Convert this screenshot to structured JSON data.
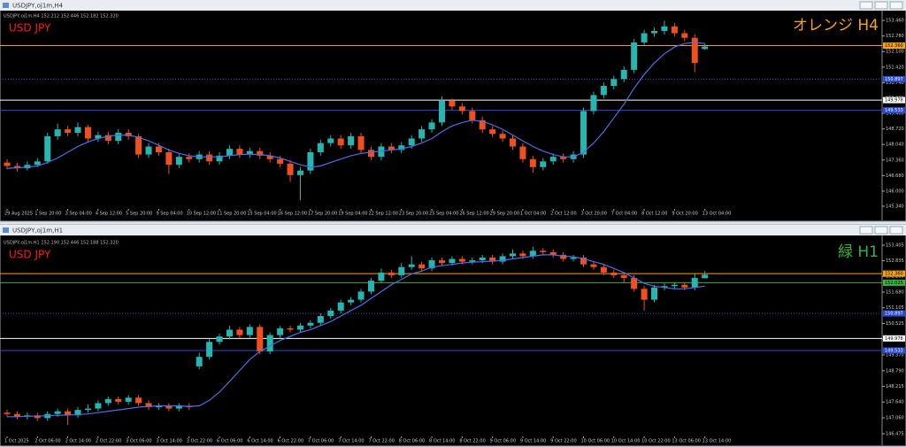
{
  "chart_data": [
    {
      "type": "candlestick",
      "window_title": "USDJPY,oj1m,H4",
      "info": "USDJPY,oj1m,H4  152.212 152.446 152.182 152.320",
      "subtitle": "USD JPY",
      "subtitle_color": "#ff1a1a",
      "title": "オレンジ H4",
      "title_color": "#f7a21b",
      "bull_color": "#26b5b0",
      "bear_color": "#f0501e",
      "ma_color": "#4d6fe6",
      "categories": [
        "29 Aug 2025",
        null,
        null,
        "1 Sep 20:00",
        null,
        null,
        "3 Sep 04:00",
        null,
        null,
        "4 Sep 12:00",
        null,
        null,
        "5 Sep 20:00",
        null,
        null,
        "9 Sep 04:00",
        null,
        null,
        "10 Sep 12:00",
        null,
        null,
        "11 Sep 20:00",
        null,
        null,
        "15 Sep 04:00",
        null,
        null,
        "16 Sep 12:00",
        null,
        null,
        "17 Sep 20:00",
        null,
        null,
        "19 Sep 04:00",
        null,
        null,
        "22 Sep 12:00",
        null,
        null,
        "23 Sep 20:00",
        null,
        null,
        "25 Sep 04:00",
        null,
        null,
        "26 Sep 12:00",
        null,
        null,
        "29 Sep 20:00",
        null,
        null,
        "1 Oct 04:00",
        null,
        null,
        "2 Oct 12:00",
        null,
        null,
        "3 Oct 20:00",
        null,
        null,
        "7 Oct 04:00",
        null,
        null,
        "8 Oct 12:00",
        null,
        null,
        "9 Oct 20:00",
        null,
        null,
        "13 Oct 04:00"
      ],
      "open": [
        147.25,
        147.1,
        147.0,
        147.15,
        147.3,
        148.4,
        148.7,
        148.55,
        148.8,
        148.3,
        148.45,
        148.2,
        148.55,
        148.4,
        147.6,
        147.95,
        147.7,
        147.15,
        147.5,
        147.4,
        147.6,
        147.3,
        147.55,
        147.85,
        147.6,
        147.75,
        147.55,
        147.4,
        147.2,
        146.7,
        146.9,
        147.7,
        148.1,
        148.3,
        148.0,
        148.4,
        147.8,
        147.5,
        147.95,
        147.8,
        148.0,
        148.3,
        148.7,
        149.0,
        149.95,
        149.7,
        149.5,
        149.1,
        148.7,
        148.5,
        148.3,
        147.95,
        147.4,
        147.05,
        147.3,
        147.5,
        147.4,
        147.6,
        149.5,
        150.2,
        150.6,
        150.9,
        151.3,
        152.5,
        152.9,
        153.0,
        153.2,
        152.9,
        152.7,
        152.21
      ],
      "high": [
        147.4,
        147.25,
        147.3,
        147.45,
        148.55,
        148.95,
        148.85,
        149.0,
        148.9,
        148.6,
        148.6,
        148.7,
        148.7,
        148.5,
        148.1,
        148.1,
        147.85,
        147.65,
        147.65,
        147.75,
        147.75,
        147.7,
        148.0,
        148.0,
        147.9,
        147.9,
        147.7,
        147.55,
        147.35,
        147.05,
        147.85,
        148.25,
        148.45,
        148.45,
        148.55,
        148.55,
        147.95,
        148.1,
        148.1,
        148.15,
        148.45,
        148.85,
        149.15,
        150.15,
        150.05,
        149.85,
        149.65,
        149.25,
        148.85,
        148.65,
        148.45,
        148.1,
        147.55,
        147.45,
        147.65,
        147.65,
        147.75,
        149.65,
        150.35,
        150.75,
        151.05,
        151.45,
        152.65,
        153.05,
        153.15,
        153.45,
        153.35,
        153.05,
        152.85,
        152.45
      ],
      "low": [
        146.95,
        146.85,
        146.9,
        147.05,
        147.2,
        148.25,
        148.4,
        148.4,
        148.15,
        148.15,
        148.05,
        148.05,
        148.25,
        147.45,
        147.45,
        147.55,
        146.75,
        147.0,
        147.25,
        147.25,
        147.15,
        147.15,
        147.4,
        147.45,
        147.45,
        147.4,
        147.25,
        147.05,
        146.4,
        145.6,
        146.75,
        147.55,
        147.95,
        147.85,
        147.85,
        147.65,
        147.35,
        147.35,
        147.65,
        147.65,
        147.85,
        148.15,
        148.55,
        148.85,
        149.55,
        149.35,
        148.95,
        148.55,
        148.35,
        148.15,
        147.8,
        147.25,
        146.8,
        146.9,
        147.15,
        147.25,
        147.25,
        147.45,
        149.35,
        150.05,
        150.45,
        150.75,
        151.15,
        152.35,
        152.75,
        152.85,
        152.75,
        152.55,
        151.2,
        152.18
      ],
      "close": [
        147.1,
        147.0,
        147.15,
        147.3,
        148.4,
        148.7,
        148.55,
        148.8,
        148.3,
        148.45,
        148.2,
        148.55,
        148.4,
        147.6,
        147.95,
        147.7,
        147.15,
        147.5,
        147.4,
        147.6,
        147.3,
        147.55,
        147.85,
        147.6,
        147.75,
        147.55,
        147.4,
        147.2,
        146.7,
        146.9,
        147.7,
        148.1,
        148.3,
        148.0,
        148.4,
        147.8,
        147.5,
        147.95,
        147.8,
        148.0,
        148.3,
        148.7,
        149.0,
        149.95,
        149.7,
        149.5,
        149.1,
        148.7,
        148.5,
        148.3,
        147.95,
        147.4,
        147.05,
        147.3,
        147.5,
        147.4,
        147.6,
        149.5,
        150.2,
        150.6,
        150.9,
        151.3,
        152.5,
        152.9,
        153.0,
        153.2,
        152.9,
        152.7,
        151.6,
        152.32
      ],
      "ma": [
        147.0,
        147.02,
        147.05,
        147.1,
        147.25,
        147.45,
        147.7,
        147.95,
        148.15,
        148.3,
        148.4,
        148.45,
        148.45,
        148.35,
        148.2,
        148.0,
        147.8,
        147.65,
        147.55,
        147.5,
        147.5,
        147.5,
        147.55,
        147.6,
        147.62,
        147.6,
        147.55,
        147.45,
        147.3,
        147.15,
        147.05,
        147.1,
        147.25,
        147.4,
        147.55,
        147.65,
        147.7,
        147.75,
        147.8,
        147.85,
        147.95,
        148.1,
        148.3,
        148.6,
        148.85,
        149.0,
        149.1,
        149.05,
        148.9,
        148.7,
        148.45,
        148.2,
        147.95,
        147.75,
        147.6,
        147.5,
        147.5,
        147.7,
        148.1,
        148.6,
        149.2,
        149.8,
        150.5,
        151.1,
        151.6,
        152.0,
        152.3,
        152.45,
        152.5,
        152.45
      ],
      "ylim": [
        145.34,
        153.85
      ],
      "yticks": [
        {
          "value": 153.46,
          "label": "153.460"
        },
        {
          "value": 152.78,
          "label": "152.780"
        },
        {
          "value": 152.1,
          "label": "152.100"
        },
        {
          "value": 151.42,
          "label": "151.420"
        },
        {
          "value": 150.74,
          "label": "150.740"
        },
        {
          "value": 150.06,
          "label": "150.060"
        },
        {
          "value": 149.4,
          "label": "149.400"
        },
        {
          "value": 148.72,
          "label": "148.720"
        },
        {
          "value": 148.04,
          "label": "148.040"
        },
        {
          "value": 147.36,
          "label": "147.360"
        },
        {
          "value": 146.68,
          "label": "146.680"
        },
        {
          "value": 146,
          "label": "146.000"
        },
        {
          "value": 145.34,
          "label": "145.340"
        }
      ],
      "levels": [
        {
          "value": 152.36,
          "label": "152.360",
          "color": "#f7a21b",
          "text_color": "#000000",
          "style": "solid"
        },
        {
          "value": 150.897,
          "label": "150.897",
          "color": "#2a4bd7",
          "text_color": "#ffffff",
          "style": "dotted"
        },
        {
          "value": 149.978,
          "label": "149.978",
          "color": "#ffffff",
          "text_color": "#000000",
          "style": "solid"
        },
        {
          "value": 149.533,
          "label": "149.533",
          "color": "#2a4bd7",
          "text_color": "#ffffff",
          "style": "solid"
        }
      ]
    },
    {
      "type": "candlestick",
      "window_title": "USDJPY,oj1m,H1",
      "info": "USDJPY,oj1m,H1  152.190 152.446 152.188 152.320",
      "subtitle": "USD JPY",
      "subtitle_color": "#ff1a1a",
      "title": "緑 H1",
      "title_color": "#3cb043",
      "bull_color": "#26b5b0",
      "bear_color": "#f0501e",
      "ma_color": "#4d6fe6",
      "categories": [
        "1 Oct 2025",
        null,
        null,
        "2 Oct 06:00",
        null,
        null,
        "2 Oct 14:00",
        null,
        null,
        "2 Oct 22:00",
        null,
        null,
        "3 Oct 06:00",
        null,
        null,
        "3 Oct 14:00",
        null,
        null,
        "3 Oct 22:00",
        null,
        null,
        "6 Oct 06:00",
        null,
        null,
        "6 Oct 14:00",
        null,
        null,
        "6 Oct 22:00",
        null,
        null,
        "7 Oct 06:00",
        null,
        null,
        "7 Oct 14:00",
        null,
        null,
        "7 Oct 22:00",
        null,
        null,
        "8 Oct 06:00",
        null,
        null,
        "8 Oct 14:00",
        null,
        null,
        "8 Oct 22:00",
        null,
        null,
        "9 Oct 06:00",
        null,
        null,
        "9 Oct 14:00",
        null,
        null,
        "9 Oct 22:00",
        null,
        null,
        "10 Oct 06:00",
        null,
        null,
        "10 Oct 14:00",
        null,
        null,
        "10 Oct 22:00",
        null,
        null,
        "13 Oct 06:00",
        null,
        null,
        "13 Oct 14:00"
      ],
      "open": [
        147.25,
        147.2,
        147.1,
        147.15,
        147.05,
        147.2,
        147.3,
        147.15,
        147.35,
        147.4,
        147.6,
        147.75,
        147.65,
        147.8,
        147.6,
        147.45,
        147.5,
        147.4,
        147.5,
        148.95,
        149.3,
        149.85,
        150.05,
        150.3,
        150.1,
        150.4,
        149.5,
        150.1,
        150.35,
        150.3,
        150.45,
        150.55,
        150.8,
        151.0,
        151.3,
        151.4,
        151.7,
        152.1,
        152.4,
        152.3,
        152.6,
        152.7,
        152.55,
        152.85,
        152.75,
        152.9,
        152.8,
        152.85,
        152.95,
        152.8,
        153.0,
        153.1,
        153.0,
        153.2,
        153.15,
        153.05,
        152.9,
        152.95,
        152.7,
        152.6,
        152.4,
        152.3,
        152.2,
        151.8,
        151.4,
        151.85,
        151.9,
        151.95,
        151.85,
        152.19
      ],
      "high": [
        147.35,
        147.3,
        147.25,
        147.25,
        147.3,
        147.4,
        147.4,
        147.45,
        147.55,
        147.7,
        147.85,
        147.85,
        147.9,
        147.9,
        147.7,
        147.6,
        147.6,
        147.6,
        147.6,
        149.45,
        149.95,
        150.15,
        150.45,
        150.4,
        150.5,
        150.5,
        150.2,
        150.45,
        150.45,
        150.55,
        150.65,
        150.9,
        151.1,
        151.4,
        151.5,
        151.8,
        152.2,
        152.55,
        152.5,
        152.75,
        153.0,
        152.8,
        152.95,
        152.95,
        153.0,
        153.0,
        152.95,
        153.05,
        153.05,
        153.1,
        153.25,
        153.2,
        153.35,
        153.3,
        153.25,
        153.15,
        153.05,
        153.05,
        152.8,
        152.7,
        152.5,
        152.4,
        152.3,
        151.9,
        151.95,
        152.0,
        152.05,
        152.05,
        152.35,
        152.45
      ],
      "low": [
        147.1,
        147.0,
        147.0,
        146.95,
        146.95,
        147.1,
        146.8,
        147.05,
        147.25,
        147.3,
        147.5,
        147.55,
        147.55,
        147.5,
        147.35,
        147.35,
        147.3,
        147.3,
        147.35,
        148.85,
        149.2,
        149.75,
        149.95,
        150.0,
        150.0,
        149.4,
        149.4,
        150.0,
        150.2,
        150.2,
        150.35,
        150.45,
        150.7,
        150.9,
        151.2,
        151.3,
        151.6,
        152.0,
        152.2,
        152.2,
        152.5,
        152.45,
        152.45,
        152.65,
        152.65,
        152.7,
        152.7,
        152.75,
        152.7,
        152.7,
        152.9,
        152.9,
        152.9,
        153.05,
        152.95,
        152.8,
        152.8,
        152.6,
        152.5,
        152.3,
        152.2,
        152.0,
        151.7,
        151.0,
        151.3,
        151.75,
        151.8,
        151.75,
        151.75,
        152.19
      ],
      "close": [
        147.2,
        147.1,
        147.15,
        147.05,
        147.2,
        147.3,
        147.15,
        147.35,
        147.4,
        147.6,
        147.75,
        147.65,
        147.8,
        147.6,
        147.45,
        147.5,
        147.4,
        147.5,
        147.45,
        149.3,
        149.85,
        150.05,
        150.3,
        150.1,
        150.4,
        149.5,
        150.1,
        150.35,
        150.3,
        150.45,
        150.55,
        150.8,
        151.0,
        151.3,
        151.4,
        151.7,
        152.1,
        152.4,
        152.3,
        152.6,
        152.7,
        152.55,
        152.85,
        152.75,
        152.9,
        152.8,
        152.85,
        152.95,
        152.8,
        153.0,
        153.1,
        153.0,
        153.2,
        153.15,
        153.05,
        152.9,
        152.95,
        152.7,
        152.6,
        152.4,
        152.3,
        152.2,
        151.8,
        151.4,
        151.85,
        151.9,
        151.95,
        151.85,
        152.2,
        152.32
      ],
      "ma": [
        147.1,
        147.1,
        147.12,
        147.12,
        147.14,
        147.15,
        147.16,
        147.18,
        147.2,
        147.25,
        147.3,
        147.35,
        147.4,
        147.45,
        147.48,
        147.5,
        147.5,
        147.5,
        147.48,
        147.5,
        147.7,
        148.0,
        148.4,
        148.8,
        149.2,
        149.5,
        149.7,
        149.9,
        150.05,
        150.2,
        150.3,
        150.45,
        150.6,
        150.8,
        151.0,
        151.2,
        151.45,
        151.7,
        151.95,
        152.15,
        152.35,
        152.45,
        152.6,
        152.65,
        152.7,
        152.75,
        152.78,
        152.8,
        152.82,
        152.85,
        152.9,
        152.95,
        153.0,
        153.05,
        153.05,
        153.0,
        152.98,
        152.9,
        152.8,
        152.7,
        152.55,
        152.4,
        152.2,
        152.0,
        151.9,
        151.85,
        151.8,
        151.8,
        151.85,
        151.9
      ],
      "ylim": [
        146.475,
        153.665
      ],
      "yticks": [
        {
          "value": 153.405,
          "label": "153.405"
        },
        {
          "value": 152.835,
          "label": "152.835"
        },
        {
          "value": 152.26,
          "label": "152.260"
        },
        {
          "value": 151.68,
          "label": "151.680"
        },
        {
          "value": 151.105,
          "label": "151.105"
        },
        {
          "value": 150.525,
          "label": "150.525"
        },
        {
          "value": 149.95,
          "label": "149.950"
        },
        {
          "value": 149.37,
          "label": "149.370"
        },
        {
          "value": 148.79,
          "label": "148.790"
        },
        {
          "value": 148.215,
          "label": "148.215"
        },
        {
          "value": 147.64,
          "label": "147.640"
        },
        {
          "value": 147.06,
          "label": "147.060"
        },
        {
          "value": 146.475,
          "label": "146.475"
        }
      ],
      "levels": [
        {
          "value": 152.36,
          "label": "152.360",
          "color": "#f7a21b",
          "text_color": "#000000",
          "style": "solid"
        },
        {
          "value": 152.025,
          "label": "152.025",
          "color": "#3cb043",
          "text_color": "#000000",
          "style": "solid"
        },
        {
          "value": 150.897,
          "label": "150.897",
          "color": "#2a4bd7",
          "text_color": "#ffffff",
          "style": "dotted"
        },
        {
          "value": 149.978,
          "label": "149.978",
          "color": "#ffffff",
          "text_color": "#000000",
          "style": "solid"
        },
        {
          "value": 149.533,
          "label": "149.533",
          "color": "#2a4bd7",
          "text_color": "#ffffff",
          "style": "solid"
        }
      ]
    }
  ]
}
